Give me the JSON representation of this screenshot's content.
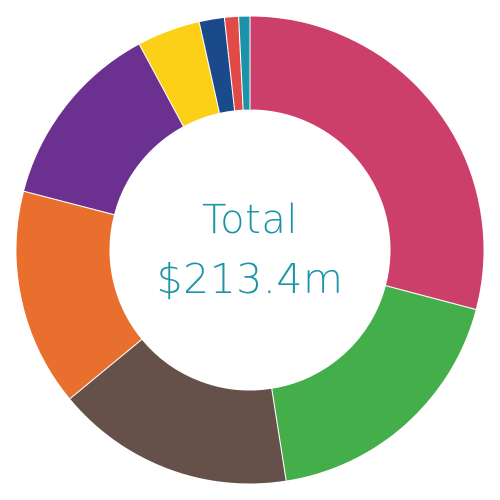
{
  "chart_data": {
    "type": "pie",
    "subtype": "donut",
    "center_title": "Total",
    "center_value": "$213.4m",
    "colors": {
      "center_text": "#1b93a8",
      "separator": "#ffffff"
    },
    "slices": [
      {
        "value": 30.0,
        "color": "#cd3f6b"
      },
      {
        "value": 19.0,
        "color": "#44ae4a"
      },
      {
        "value": 17.0,
        "color": "#65514a"
      },
      {
        "value": 15.5,
        "color": "#e86f2e"
      },
      {
        "value": 13.5,
        "color": "#6b3090"
      },
      {
        "value": 4.5,
        "color": "#fcd016"
      },
      {
        "value": 1.8,
        "color": "#1b4a8a"
      },
      {
        "value": 1.0,
        "color": "#e14a47"
      },
      {
        "value": 0.8,
        "color": "#1b93a8"
      }
    ]
  }
}
